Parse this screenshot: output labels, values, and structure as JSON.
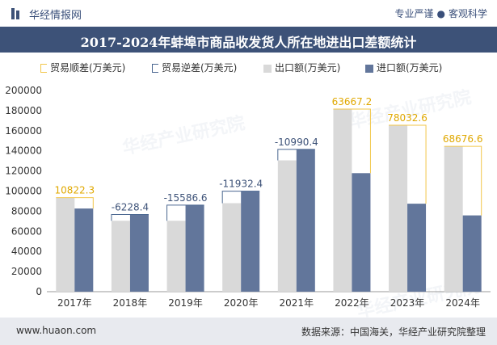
{
  "header": {
    "brand": "华经情报网",
    "slogan_left": "专业严谨",
    "slogan_dot": "●",
    "slogan_right": "客观科学"
  },
  "title": "2017-2024年蚌埠市商品收发货人所在地进出口差额统计",
  "legend": {
    "trade_positive": "贸易顺差(万美元)",
    "trade_negative": "贸易逆差(万美元)",
    "export": "出口额(万美元)",
    "import": "进口额(万美元)"
  },
  "colors": {
    "export": "#d9d9d9",
    "import": "#62769b",
    "surplus": "#f2c64a",
    "deficit": "#4a6690",
    "title_bg": "#3d5278"
  },
  "watermark": "华经产业研究院",
  "chart_data": {
    "type": "bar",
    "categories": [
      "2017年",
      "2018年",
      "2019年",
      "2020年",
      "2021年",
      "2022年",
      "2023年",
      "2024年"
    ],
    "series": [
      {
        "name": "出口额(万美元)",
        "values": [
          93500,
          70500,
          70500,
          88000,
          130500,
          181500,
          165500,
          144500
        ]
      },
      {
        "name": "进口额(万美元)",
        "values": [
          82677.7,
          76728.4,
          86086.6,
          99932.4,
          141490.4,
          117832.8,
          87467.4,
          75823.4
        ]
      }
    ],
    "balance": {
      "values": [
        10822.3,
        -6228.4,
        -15586.6,
        -11932.4,
        -10990.4,
        63667.2,
        78032.6,
        68676.6
      ],
      "labels": [
        "10822.3",
        "-6228.4",
        "-15586.6",
        "-11932.4",
        "-10990.4",
        "63667.2",
        "78032.6",
        "68676.6"
      ]
    },
    "ylim": [
      0,
      200000
    ],
    "yticks": [
      0,
      20000,
      40000,
      60000,
      80000,
      100000,
      120000,
      140000,
      160000,
      180000,
      200000
    ],
    "legend_position": "top"
  },
  "footer": {
    "site": "www.huaon.com",
    "source": "数据来源：中国海关，华经产业研究院整理"
  }
}
